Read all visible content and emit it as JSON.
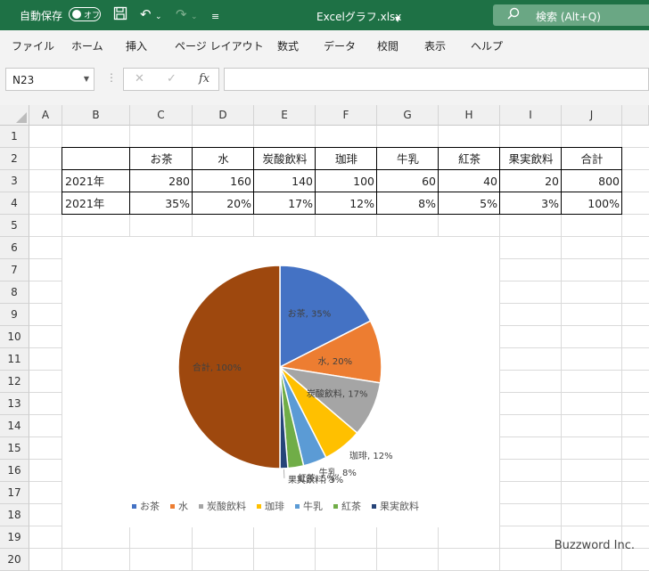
{
  "titlebar": {
    "autosave_label": "自動保存",
    "autosave_state": "オフ",
    "filename": "Excelグラフ.xlsx",
    "search_label": "検索 (Alt+Q)",
    "icons": [
      "save-icon",
      "undo-icon",
      "redo-icon",
      "customize-quick-access-icon",
      "search-icon"
    ]
  },
  "menu": [
    "ファイル",
    "ホーム",
    "挿入",
    "ページ レイアウト",
    "数式",
    "データ",
    "校閲",
    "表示",
    "ヘルプ"
  ],
  "formula_bar": {
    "name_box": "N23",
    "cancel_symbol": "✕",
    "enter_symbol": "✓",
    "fx_symbol": "fx",
    "formula": ""
  },
  "sheet": {
    "columns": [
      "A",
      "B",
      "C",
      "D",
      "E",
      "F",
      "G",
      "H",
      "I",
      "J"
    ],
    "rows": [
      "1",
      "2",
      "3",
      "4",
      "5",
      "6",
      "7",
      "8",
      "9",
      "10",
      "11",
      "12",
      "13",
      "14",
      "15",
      "16",
      "17",
      "18",
      "19",
      "20"
    ],
    "table": {
      "header": [
        "",
        "お茶",
        "水",
        "炭酸飲料",
        "珈琲",
        "牛乳",
        "紅茶",
        "果実飲料",
        "合計"
      ],
      "row3": [
        "2021年",
        "280",
        "160",
        "140",
        "100",
        "60",
        "40",
        "20",
        "800"
      ],
      "row4": [
        "2021年",
        "35%",
        "20%",
        "17%",
        "12%",
        "8%",
        "5%",
        "3%",
        "100%"
      ]
    }
  },
  "chart_data": {
    "type": "pie",
    "categories": [
      "お茶",
      "水",
      "炭酸飲料",
      "珈琲",
      "牛乳",
      "紅茶",
      "果実飲料",
      "合計"
    ],
    "values": [
      280,
      160,
      140,
      100,
      60,
      40,
      20,
      800
    ],
    "data_labels": [
      "お茶, 35%",
      "水, 20%",
      "炭酸飲料, 17%",
      "珈琲, 12%",
      "牛乳, 8%",
      "紅茶, 5%",
      "果実飲料, 3%",
      "合計, 100%"
    ],
    "colors": [
      "#4472c4",
      "#ed7d31",
      "#a5a5a5",
      "#ffc000",
      "#5b9bd5",
      "#70ad47",
      "#264478",
      "#9e480e"
    ],
    "legend": [
      "お茶",
      "水",
      "炭酸飲料",
      "珈琲",
      "牛乳",
      "紅茶",
      "果実飲料"
    ],
    "legend_position": "bottom",
    "title": ""
  },
  "watermark": "Buzzword Inc."
}
